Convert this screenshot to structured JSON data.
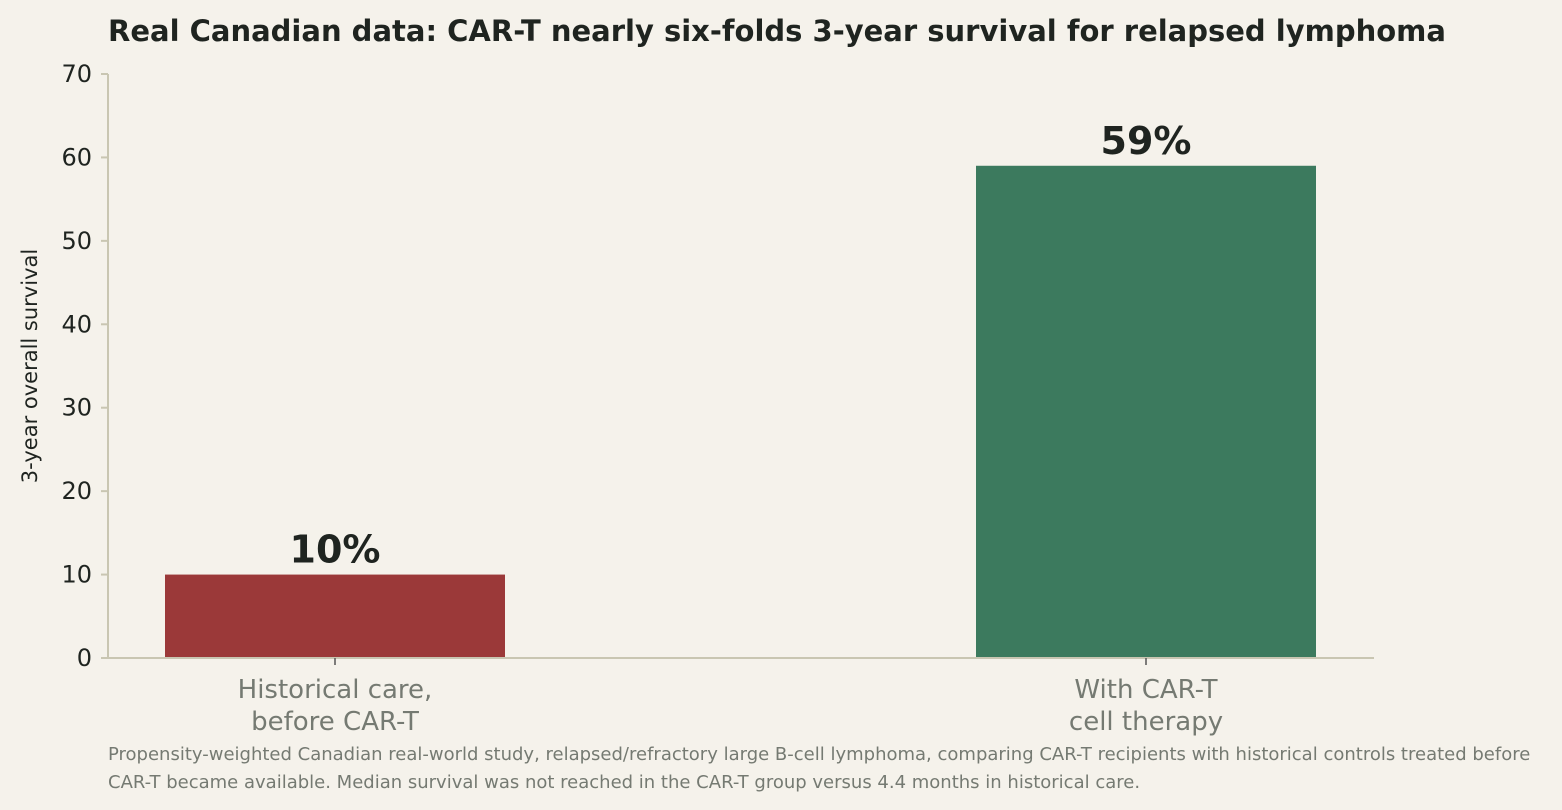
{
  "chart_data": {
    "type": "bar",
    "title": "Real Canadian data: CAR-T nearly six-folds 3-year survival for relapsed lymphoma",
    "ylabel": "3-year overall survival",
    "xlabel": "",
    "categories": [
      "Historical care,\nbefore CAR-T",
      "With CAR-T\ncell therapy"
    ],
    "values": [
      10,
      59
    ],
    "value_labels": [
      "10%",
      "59%"
    ],
    "colors": [
      "#9b3939",
      "#3c7a5e"
    ],
    "ylim": [
      0,
      70
    ],
    "yticks": [
      "0",
      "10",
      "20",
      "30",
      "40",
      "50",
      "60",
      "70"
    ],
    "grid": false,
    "legend": "none"
  },
  "footnote": "Propensity-weighted Canadian real-world study, relapsed/refractory large B-cell lymphoma, comparing CAR-T recipients with historical controls treated before CAR-T became available. Median survival was not reached in the CAR-T group versus 4.4 months in historical care."
}
